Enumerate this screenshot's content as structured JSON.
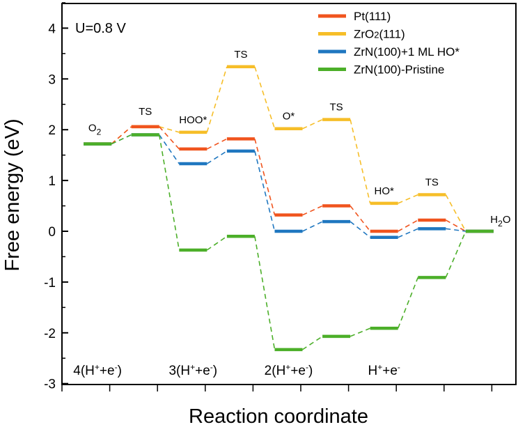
{
  "chart_data": {
    "type": "line",
    "xlabel": "Reaction coordinate",
    "ylabel": "Free energy (eV)",
    "ylim": [
      -3,
      4.5
    ],
    "y_ticks": [
      "-3",
      "-2",
      "-1",
      "0",
      "1",
      "2",
      "3",
      "4"
    ],
    "condition_label": "U=0.8 V",
    "legend": {
      "placement": "top-right"
    },
    "x_positions": [
      1,
      2,
      3,
      4,
      5,
      6,
      7,
      8,
      9
    ],
    "series": [
      {
        "name": "Pt(111)",
        "color": "#F0541E",
        "values": [
          1.72,
          2.06,
          1.62,
          1.82,
          0.32,
          0.5,
          0.0,
          0.22,
          0.0
        ]
      },
      {
        "name": "ZrO2(111)",
        "color": "#F6BE28",
        "values": [
          1.72,
          2.06,
          1.95,
          3.24,
          2.02,
          2.2,
          0.55,
          0.72,
          0.0
        ]
      },
      {
        "name": "ZrN(100)+1 ML HO*",
        "color": "#1F77C0",
        "values": [
          1.72,
          1.9,
          1.33,
          1.58,
          0.0,
          0.19,
          -0.12,
          0.05,
          0.0
        ]
      },
      {
        "name": "ZrN(100)-Pristine",
        "color": "#4CAF29",
        "values": [
          1.72,
          1.9,
          -0.37,
          -0.1,
          -2.33,
          -2.07,
          -1.91,
          -0.91,
          0.0
        ]
      }
    ],
    "state_labels": [
      {
        "text": "O2",
        "x": 1,
        "y": 1.72
      },
      {
        "text": "TS",
        "x": 2,
        "y": 2.06
      },
      {
        "text": "HOO*",
        "x": 3,
        "y": 1.95
      },
      {
        "text": "TS",
        "x": 4,
        "y": 3.24
      },
      {
        "text": "O*",
        "x": 5,
        "y": 2.02
      },
      {
        "text": "TS",
        "x": 6,
        "y": 2.2
      },
      {
        "text": "HO*",
        "x": 7,
        "y": 0.55
      },
      {
        "text": "TS",
        "x": 8,
        "y": 0.72
      },
      {
        "text": "H2O",
        "x": 9,
        "y": 0.0
      }
    ],
    "electron_labels": [
      {
        "text": "4(H+ + e-)",
        "x": 1
      },
      {
        "text": "3(H+ + e-)",
        "x": 3
      },
      {
        "text": "2(H+ + e-)",
        "x": 5
      },
      {
        "text": "H+ + e-",
        "x": 7
      }
    ]
  }
}
